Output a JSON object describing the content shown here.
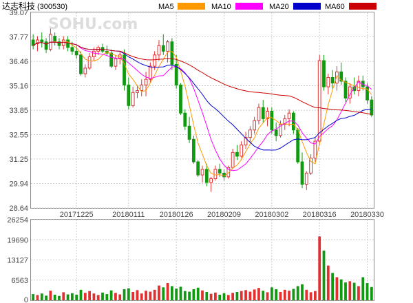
{
  "header": {
    "stock_name": "达志科技",
    "stock_code": "(300530)",
    "legend": [
      {
        "label": "MA5",
        "color": "#ff9900"
      },
      {
        "label": "MA10",
        "color": "#ff00ff"
      },
      {
        "label": "MA20",
        "color": "#0000cc"
      },
      {
        "label": "MA60",
        "color": "#cc0000"
      }
    ]
  },
  "watermark": "SOHU.com",
  "colors": {
    "up": "#e03030",
    "down": "#119911",
    "grid": "#cccccc",
    "axis": "#444444",
    "ma5": "#ff9900",
    "ma10": "#ff00ff",
    "ma20": "#0000cc",
    "ma60": "#cc0000"
  },
  "chart_data": {
    "type": "candlestick",
    "price_ylim": [
      28.64,
      39.07
    ],
    "price_ticks": [
      "39.07",
      "37.77",
      "36.46",
      "35.16",
      "33.85",
      "32.55",
      "31.25",
      "29.94",
      "28.64"
    ],
    "x_tick_labels": [
      {
        "label": "20171225",
        "index": 10
      },
      {
        "label": "20180111",
        "index": 22
      },
      {
        "label": "20180126",
        "index": 33
      },
      {
        "label": "20180209",
        "index": 44
      },
      {
        "label": "20180302",
        "index": 55
      },
      {
        "label": "20180316",
        "index": 66
      },
      {
        "label": "20180330",
        "index": 77
      }
    ],
    "ohlc": [
      [
        37.6,
        37.9,
        37.1,
        37.3
      ],
      [
        37.4,
        37.8,
        37.0,
        37.6
      ],
      [
        37.6,
        38.0,
        37.2,
        37.5
      ],
      [
        37.5,
        37.7,
        36.9,
        37.1
      ],
      [
        37.1,
        38.2,
        37.0,
        37.9
      ],
      [
        37.8,
        38.0,
        37.3,
        37.5
      ],
      [
        37.5,
        37.7,
        37.1,
        37.3
      ],
      [
        37.3,
        37.8,
        37.1,
        37.6
      ],
      [
        37.6,
        37.8,
        37.0,
        37.2
      ],
      [
        37.2,
        37.5,
        36.8,
        37.0
      ],
      [
        37.0,
        37.3,
        36.6,
        36.8
      ],
      [
        36.8,
        37.0,
        35.7,
        35.8
      ],
      [
        35.8,
        36.3,
        35.6,
        36.1
      ],
      [
        36.1,
        36.9,
        36.0,
        36.7
      ],
      [
        36.7,
        37.2,
        36.5,
        37.0
      ],
      [
        37.0,
        37.3,
        36.8,
        37.2
      ],
      [
        37.2,
        37.4,
        36.9,
        37.0
      ],
      [
        37.0,
        37.3,
        36.8,
        36.9
      ],
      [
        36.9,
        37.1,
        36.1,
        36.2
      ],
      [
        36.2,
        36.8,
        36.0,
        36.6
      ],
      [
        36.6,
        37.0,
        36.3,
        36.8
      ],
      [
        36.8,
        37.1,
        34.9,
        35.2
      ],
      [
        35.2,
        35.6,
        33.9,
        34.1
      ],
      [
        34.1,
        35.1,
        34.0,
        34.8
      ],
      [
        34.8,
        35.2,
        34.5,
        34.9
      ],
      [
        34.9,
        35.5,
        34.6,
        35.2
      ],
      [
        35.2,
        35.9,
        34.6,
        35.5
      ],
      [
        35.5,
        36.4,
        35.3,
        36.2
      ],
      [
        36.2,
        37.0,
        36.0,
        36.8
      ],
      [
        36.8,
        37.6,
        36.5,
        37.3
      ],
      [
        37.3,
        37.9,
        36.8,
        37.0
      ],
      [
        37.0,
        37.6,
        36.4,
        37.5
      ],
      [
        37.5,
        37.7,
        36.0,
        36.3
      ],
      [
        36.3,
        36.8,
        35.0,
        35.2
      ],
      [
        35.2,
        35.3,
        33.6,
        33.7
      ],
      [
        33.7,
        33.9,
        32.8,
        33.0
      ],
      [
        33.0,
        33.5,
        32.1,
        32.3
      ],
      [
        32.3,
        32.5,
        31.0,
        31.1
      ],
      [
        31.1,
        31.2,
        30.3,
        30.4
      ],
      [
        30.4,
        30.9,
        30.0,
        30.7
      ],
      [
        30.7,
        31.0,
        29.8,
        30.0
      ],
      [
        30.0,
        30.3,
        29.5,
        30.2
      ],
      [
        30.2,
        30.9,
        30.1,
        30.7
      ],
      [
        30.7,
        31.0,
        30.3,
        30.5
      ],
      [
        30.5,
        30.7,
        30.1,
        30.3
      ],
      [
        30.3,
        30.9,
        30.2,
        30.8
      ],
      [
        30.8,
        31.8,
        30.7,
        31.6
      ],
      [
        31.6,
        32.0,
        31.2,
        31.4
      ],
      [
        31.4,
        32.2,
        31.3,
        32.0
      ],
      [
        32.0,
        32.7,
        31.8,
        32.4
      ],
      [
        32.4,
        33.0,
        32.1,
        32.8
      ],
      [
        32.8,
        33.5,
        32.6,
        33.3
      ],
      [
        33.3,
        34.2,
        33.1,
        34.0
      ],
      [
        34.0,
        34.4,
        33.2,
        33.4
      ],
      [
        33.4,
        34.0,
        33.0,
        33.8
      ],
      [
        33.8,
        34.0,
        32.6,
        32.8
      ],
      [
        32.8,
        33.2,
        32.2,
        32.5
      ],
      [
        32.5,
        33.3,
        32.4,
        33.1
      ],
      [
        33.1,
        33.6,
        32.8,
        33.4
      ],
      [
        33.4,
        33.9,
        33.0,
        33.7
      ],
      [
        33.7,
        33.8,
        32.6,
        32.8
      ],
      [
        32.8,
        32.9,
        31.0,
        31.1
      ],
      [
        31.1,
        31.6,
        29.7,
        29.9
      ],
      [
        29.9,
        30.6,
        29.6,
        30.5
      ],
      [
        30.5,
        31.5,
        30.4,
        31.3
      ],
      [
        31.3,
        32.4,
        31.1,
        32.2
      ],
      [
        32.2,
        36.8,
        32.0,
        36.5
      ],
      [
        36.5,
        36.8,
        34.9,
        35.1
      ],
      [
        35.1,
        35.8,
        34.7,
        35.6
      ],
      [
        35.6,
        36.0,
        35.0,
        35.3
      ],
      [
        35.3,
        36.2,
        34.9,
        35.9
      ],
      [
        35.9,
        36.4,
        35.2,
        35.4
      ],
      [
        35.4,
        35.6,
        34.3,
        34.5
      ],
      [
        34.5,
        35.3,
        34.2,
        35.1
      ],
      [
        35.1,
        35.6,
        34.7,
        34.9
      ],
      [
        34.9,
        35.7,
        34.6,
        35.4
      ],
      [
        35.4,
        35.7,
        34.9,
        35.1
      ],
      [
        35.1,
        35.3,
        34.2,
        34.4
      ],
      [
        34.4,
        34.6,
        33.5,
        33.6
      ]
    ],
    "volume": [
      2000,
      1700,
      2200,
      1500,
      3100,
      1800,
      1400,
      2600,
      1900,
      2300,
      1800,
      3400,
      2400,
      3000,
      2200,
      1700,
      2500,
      2000,
      3200,
      2400,
      1900,
      3600,
      3900,
      2700,
      3300,
      2200,
      3100,
      2800,
      3400,
      4800,
      4200,
      5600,
      4600,
      3800,
      4400,
      3000,
      2800,
      3600,
      4100,
      3200,
      2700,
      2100,
      2500,
      1800,
      2300,
      1700,
      2400,
      2700,
      3000,
      3300,
      2800,
      3500,
      4000,
      3100,
      2600,
      4200,
      3600,
      2700,
      3400,
      3100,
      3700,
      4600,
      5200,
      3400,
      2600,
      3000,
      20800,
      16200,
      11300,
      8900,
      7500,
      6800,
      5800,
      6200,
      5700,
      4600,
      7500,
      5600,
      4300
    ]
  }
}
